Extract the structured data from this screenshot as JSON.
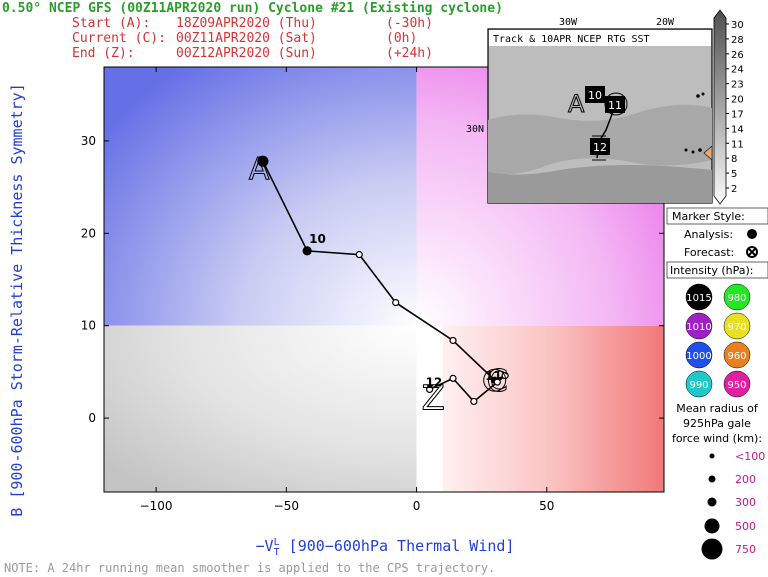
{
  "header": {
    "title": "0.50° NCEP GFS (00Z11APR2020 run) Cyclone #21 (Existing cyclone)",
    "start_label": "Start (A):",
    "start_time": "18Z09APR2020 (Thu)",
    "start_offset": "(-30h)",
    "current_label": "Current (C):",
    "current_time": "00Z11APR2020 (Sat)",
    "current_offset": "(0h)",
    "end_label": "End (Z):",
    "end_time": "00Z12APR2020 (Sun)",
    "end_offset": "(+24h)"
  },
  "note": "NOTE:  A 24hr running mean smoother is applied to the CPS trajectory.",
  "inset": {
    "title": "Track & 10APR NCEP RTG SST",
    "lon_labels": [
      "30W",
      "20W"
    ],
    "lat_label": "30N",
    "marker_labels": [
      "10",
      "11",
      "12"
    ],
    "start_mark": "A"
  },
  "colorbar": {
    "ticks": [
      "30",
      "28",
      "26",
      "24",
      "23",
      "20",
      "17",
      "14",
      "11",
      "8",
      "5",
      "2"
    ]
  },
  "legend": {
    "marker_style_title": "Marker Style:",
    "analysis_label": "Analysis:",
    "forecast_label": "Forecast:",
    "intensity_title": "Intensity (hPa):",
    "intensity": [
      {
        "value": "1015",
        "color": "#000000",
        "text_color": "#ffffff"
      },
      {
        "value": "980",
        "color": "#22e822",
        "text_color": "#ffffff"
      },
      {
        "value": "1010",
        "color": "#a020c8",
        "text_color": "#ffffff"
      },
      {
        "value": "970",
        "color": "#e8e020",
        "text_color": "#ffffff"
      },
      {
        "value": "1000",
        "color": "#2050e8",
        "text_color": "#ffffff"
      },
      {
        "value": "960",
        "color": "#e88020",
        "text_color": "#ffffff"
      },
      {
        "value": "990",
        "color": "#20c8c8",
        "text_color": "#ffffff"
      },
      {
        "value": "950",
        "color": "#e020a0",
        "text_color": "#ffffff"
      }
    ],
    "radius_title": [
      "Mean radius of",
      "925hPa gale",
      "force wind (km):"
    ],
    "radius": [
      {
        "label": "<100",
        "size": 2.5
      },
      {
        "label": "200",
        "size": 3.5
      },
      {
        "label": "300",
        "size": 4.5
      },
      {
        "label": "500",
        "size": 7.5
      },
      {
        "label": "750",
        "size": 10.5
      }
    ]
  },
  "chart_data": {
    "type": "line",
    "xlabel": "-V_T^L [900-600hPa Thermal Wind]",
    "xlabel_main": "−V",
    "xlabel_sub": "T",
    "xlabel_sup": "L",
    "xlabel_rest": " [900−600hPa Thermal Wind]",
    "ylabel": "B [900-600hPa Storm-Relative Thickness Symmetry]",
    "xlim": [
      -120,
      95
    ],
    "ylim": [
      -8,
      38
    ],
    "xticks": [
      -100,
      -50,
      0,
      50
    ],
    "xtick_labels": [
      "−100",
      "−50",
      "0",
      "50"
    ],
    "yticks": [
      0,
      10,
      20,
      30
    ],
    "ytick_labels": [
      "0",
      "10",
      "20",
      "30"
    ],
    "quadrant_dividers": {
      "x": 0,
      "y": 10
    },
    "series": [
      {
        "x": [
          -59,
          -42,
          -22,
          -8,
          14,
          30,
          34,
          31,
          22,
          14,
          5
        ],
        "y": [
          27.8,
          18.1,
          17.7,
          12.5,
          8.4,
          4.1,
          4.6,
          3.9,
          1.8,
          4.3,
          3.1
        ],
        "analysis_points": [
          0,
          1
        ],
        "forecast_points": [
          2,
          3,
          4,
          5,
          6,
          7,
          8,
          9,
          10
        ]
      }
    ],
    "annotations": [
      {
        "text": "A",
        "x": -59,
        "y": 27.8,
        "type": "start"
      },
      {
        "text": "10",
        "x": -42,
        "y": 18.1,
        "type": "day"
      },
      {
        "text": "C",
        "x": 30,
        "y": 4.1,
        "type": "current"
      },
      {
        "text": "11",
        "x": 31,
        "y": 3.9,
        "type": "day"
      },
      {
        "text": "Z",
        "x": 5,
        "y": 3.1,
        "type": "end"
      },
      {
        "text": "12",
        "x": 5,
        "y": 3.1,
        "type": "day"
      }
    ]
  }
}
